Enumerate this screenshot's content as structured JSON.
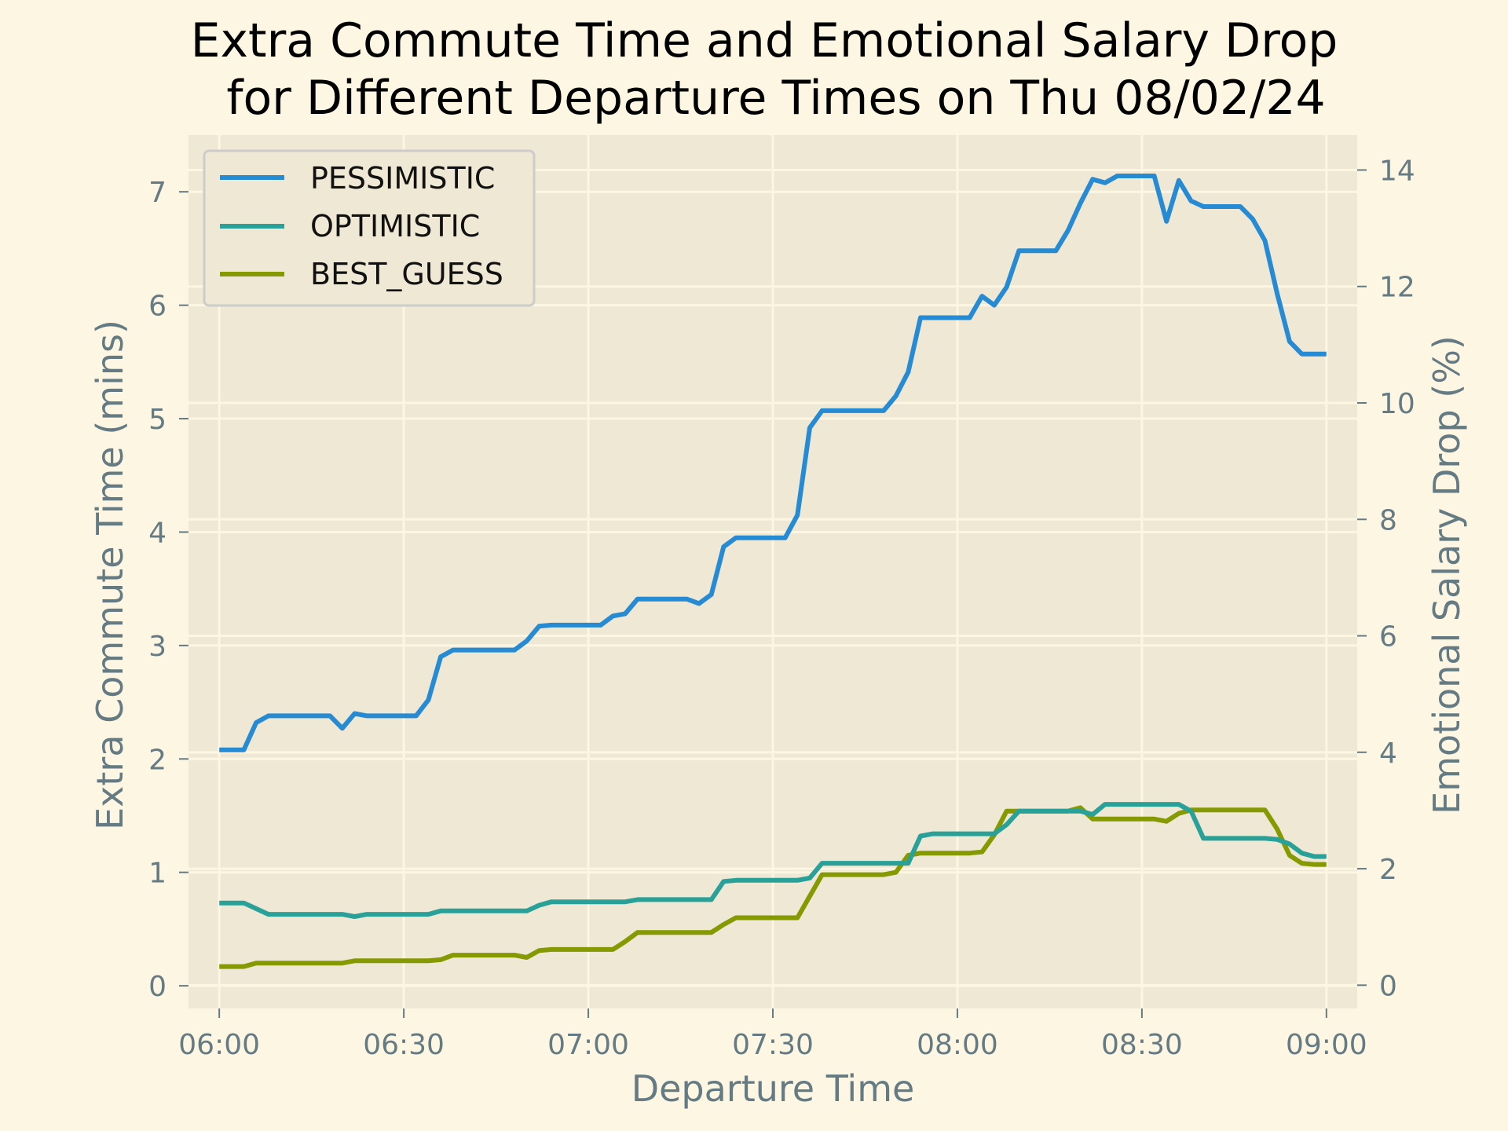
{
  "colors": {
    "background": "#fdf6e3",
    "plot_area": "#eee8d5",
    "grid": "#fdf6e3",
    "axis_text": "#657b83",
    "title_text": "#000000",
    "pessimistic": "#268bd2",
    "optimistic": "#2aa198",
    "best_guess": "#859900"
  },
  "chart_data": {
    "type": "line",
    "title_line1": "Extra Commute Time and Emotional Salary Drop",
    "title_line2": "for Different Departure Times on Thu 08/02/24",
    "xlabel": "Departure Time",
    "ylabel": "Extra Commute Time (mins)",
    "ylabel_right": "Emotional Salary Drop (%)",
    "x_ticks": [
      "06:00",
      "06:30",
      "07:00",
      "07:30",
      "08:00",
      "08:30",
      "09:00"
    ],
    "y_ticks": [
      "0",
      "1",
      "2",
      "3",
      "4",
      "5",
      "6",
      "7"
    ],
    "y2_ticks": [
      "0",
      "2",
      "4",
      "6",
      "8",
      "10",
      "12",
      "14"
    ],
    "xlim": [
      "05:55",
      "09:05"
    ],
    "ylim": [
      -0.2,
      7.5
    ],
    "y2lim": [
      -0.4,
      14.6
    ],
    "grid": true,
    "legend_position": "top-left",
    "x": [
      "06:00",
      "06:02",
      "06:04",
      "06:06",
      "06:08",
      "06:10",
      "06:12",
      "06:14",
      "06:16",
      "06:18",
      "06:20",
      "06:22",
      "06:24",
      "06:26",
      "06:28",
      "06:30",
      "06:32",
      "06:34",
      "06:36",
      "06:38",
      "06:40",
      "06:42",
      "06:44",
      "06:46",
      "06:48",
      "06:50",
      "06:52",
      "06:54",
      "06:56",
      "06:58",
      "07:00",
      "07:02",
      "07:04",
      "07:06",
      "07:08",
      "07:10",
      "07:12",
      "07:14",
      "07:16",
      "07:18",
      "07:20",
      "07:22",
      "07:24",
      "07:26",
      "07:28",
      "07:30",
      "07:32",
      "07:34",
      "07:36",
      "07:38",
      "07:40",
      "07:42",
      "07:44",
      "07:46",
      "07:48",
      "07:50",
      "07:52",
      "07:54",
      "07:56",
      "07:58",
      "08:00",
      "08:02",
      "08:04",
      "08:06",
      "08:08",
      "08:10",
      "08:12",
      "08:14",
      "08:16",
      "08:18",
      "08:20",
      "08:22",
      "08:24",
      "08:26",
      "08:28",
      "08:30",
      "08:32",
      "08:34",
      "08:36",
      "08:38",
      "08:40",
      "08:42",
      "08:44",
      "08:46",
      "08:48",
      "08:50",
      "08:52",
      "08:54",
      "08:56",
      "08:58",
      "09:00"
    ],
    "series": [
      {
        "name": "PESSIMISTIC",
        "values": [
          2.08,
          2.08,
          2.08,
          2.32,
          2.38,
          2.38,
          2.38,
          2.38,
          2.38,
          2.38,
          2.27,
          2.4,
          2.38,
          2.38,
          2.38,
          2.38,
          2.38,
          2.52,
          2.9,
          2.96,
          2.96,
          2.96,
          2.96,
          2.96,
          2.96,
          3.04,
          3.17,
          3.18,
          3.18,
          3.18,
          3.18,
          3.18,
          3.26,
          3.28,
          3.41,
          3.41,
          3.41,
          3.41,
          3.41,
          3.37,
          3.45,
          3.87,
          3.95,
          3.95,
          3.95,
          3.95,
          3.95,
          4.15,
          4.92,
          5.07,
          5.07,
          5.07,
          5.07,
          5.07,
          5.07,
          5.2,
          5.41,
          5.89,
          5.89,
          5.89,
          5.89,
          5.89,
          6.08,
          6.0,
          6.16,
          6.48,
          6.48,
          6.48,
          6.48,
          6.66,
          6.9,
          7.11,
          7.08,
          7.14,
          7.14,
          7.14,
          7.14,
          6.74,
          7.1,
          6.92,
          6.87,
          6.87,
          6.87,
          6.87,
          6.76,
          6.57,
          6.1,
          5.68,
          5.57,
          5.57,
          5.57
        ]
      },
      {
        "name": "OPTIMISTIC",
        "values": [
          0.73,
          0.73,
          0.73,
          0.68,
          0.63,
          0.63,
          0.63,
          0.63,
          0.63,
          0.63,
          0.63,
          0.61,
          0.63,
          0.63,
          0.63,
          0.63,
          0.63,
          0.63,
          0.66,
          0.66,
          0.66,
          0.66,
          0.66,
          0.66,
          0.66,
          0.66,
          0.71,
          0.74,
          0.74,
          0.74,
          0.74,
          0.74,
          0.74,
          0.74,
          0.76,
          0.76,
          0.76,
          0.76,
          0.76,
          0.76,
          0.76,
          0.92,
          0.93,
          0.93,
          0.93,
          0.93,
          0.93,
          0.93,
          0.95,
          1.08,
          1.08,
          1.08,
          1.08,
          1.08,
          1.08,
          1.08,
          1.08,
          1.32,
          1.34,
          1.34,
          1.34,
          1.34,
          1.34,
          1.34,
          1.42,
          1.54,
          1.54,
          1.54,
          1.54,
          1.54,
          1.54,
          1.51,
          1.6,
          1.6,
          1.6,
          1.6,
          1.6,
          1.6,
          1.6,
          1.54,
          1.3,
          1.3,
          1.3,
          1.3,
          1.3,
          1.3,
          1.29,
          1.25,
          1.17,
          1.14,
          1.14
        ]
      },
      {
        "name": "BEST_GUESS",
        "values": [
          0.17,
          0.17,
          0.17,
          0.2,
          0.2,
          0.2,
          0.2,
          0.2,
          0.2,
          0.2,
          0.2,
          0.22,
          0.22,
          0.22,
          0.22,
          0.22,
          0.22,
          0.22,
          0.23,
          0.27,
          0.27,
          0.27,
          0.27,
          0.27,
          0.27,
          0.25,
          0.31,
          0.32,
          0.32,
          0.32,
          0.32,
          0.32,
          0.32,
          0.39,
          0.47,
          0.47,
          0.47,
          0.47,
          0.47,
          0.47,
          0.47,
          0.54,
          0.6,
          0.6,
          0.6,
          0.6,
          0.6,
          0.6,
          0.79,
          0.98,
          0.98,
          0.98,
          0.98,
          0.98,
          0.98,
          1.0,
          1.15,
          1.17,
          1.17,
          1.17,
          1.17,
          1.17,
          1.18,
          1.33,
          1.54,
          1.54,
          1.54,
          1.54,
          1.54,
          1.54,
          1.57,
          1.47,
          1.47,
          1.47,
          1.47,
          1.47,
          1.47,
          1.45,
          1.52,
          1.55,
          1.55,
          1.55,
          1.55,
          1.55,
          1.55,
          1.55,
          1.38,
          1.15,
          1.08,
          1.07,
          1.07
        ]
      }
    ]
  }
}
